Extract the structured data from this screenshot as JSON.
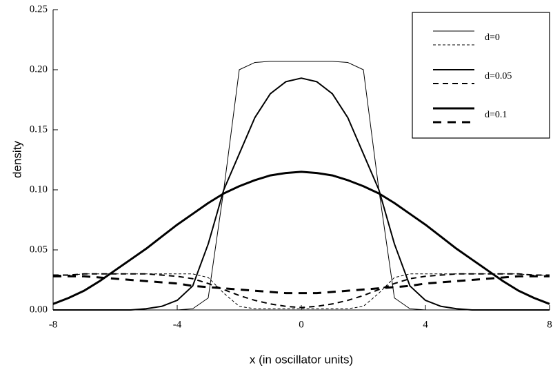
{
  "chart_data": {
    "type": "line",
    "xlabel": "x (in oscillator units)",
    "ylabel": "density",
    "xlim": [
      -8,
      8
    ],
    "xticks": [
      -8,
      -4,
      0,
      4,
      8
    ],
    "ylim": [
      0,
      0.25
    ],
    "yticks": [
      {
        "value": 0,
        "label": "0.00"
      },
      0.05,
      {
        "value": 0.1,
        "label": "0.10"
      },
      0.15,
      {
        "value": 0.2,
        "label": "0.20"
      },
      0.25
    ],
    "legend": "upper right",
    "x": [
      -8,
      -7.5,
      -7,
      -6.5,
      -6,
      -5.5,
      -5,
      -4.5,
      -4,
      -3.5,
      -3,
      -2.5,
      -2,
      -1.5,
      -1,
      -0.5,
      0,
      0.5,
      1,
      1.5,
      2,
      2.5,
      3,
      3.5,
      4,
      4.5,
      5,
      5.5,
      6,
      6.5,
      7,
      7.5,
      8
    ],
    "series": [
      {
        "name": "d=0",
        "color": "#000000",
        "line_width": 1,
        "lines": [
          {
            "dashed": false,
            "values": [
              0,
              0,
              0,
              0,
              0,
              0,
              0,
              0,
              0,
              0.001,
              0.01,
              0.1,
              0.2,
              0.206,
              0.207,
              0.207,
              0.207,
              0.207,
              0.207,
              0.206,
              0.2,
              0.1,
              0.01,
              0.001,
              0,
              0,
              0,
              0,
              0,
              0,
              0,
              0,
              0
            ]
          },
          {
            "dashed": true,
            "values": [
              0.029,
              0.029,
              0.03,
              0.03,
              0.03,
              0.03,
              0.03,
              0.03,
              0.03,
              0.03,
              0.027,
              0.014,
              0.003,
              0.001,
              0.001,
              0.001,
              0.001,
              0.001,
              0.001,
              0.001,
              0.003,
              0.014,
              0.027,
              0.03,
              0.03,
              0.03,
              0.03,
              0.03,
              0.03,
              0.03,
              0.03,
              0.029,
              0.029
            ]
          }
        ]
      },
      {
        "name": "d=0.05",
        "color": "#000000",
        "line_width": 2,
        "lines": [
          {
            "dashed": false,
            "values": [
              0,
              0,
              0,
              0,
              0,
              0,
              0.001,
              0.003,
              0.008,
              0.02,
              0.055,
              0.1,
              0.13,
              0.16,
              0.18,
              0.19,
              0.193,
              0.19,
              0.18,
              0.16,
              0.13,
              0.1,
              0.055,
              0.02,
              0.008,
              0.003,
              0.001,
              0,
              0,
              0,
              0,
              0,
              0
            ]
          },
          {
            "dashed": true,
            "values": [
              0.029,
              0.029,
              0.03,
              0.03,
              0.03,
              0.03,
              0.03,
              0.029,
              0.028,
              0.026,
              0.022,
              0.017,
              0.012,
              0.008,
              0.005,
              0.003,
              0.002,
              0.003,
              0.005,
              0.008,
              0.012,
              0.017,
              0.022,
              0.026,
              0.028,
              0.029,
              0.03,
              0.03,
              0.03,
              0.03,
              0.03,
              0.029,
              0.029
            ]
          }
        ]
      },
      {
        "name": "d=0.1",
        "color": "#000000",
        "line_width": 3,
        "lines": [
          {
            "dashed": false,
            "values": [
              0.005,
              0.01,
              0.016,
              0.024,
              0.033,
              0.042,
              0.051,
              0.061,
              0.071,
              0.08,
              0.089,
              0.097,
              0.103,
              0.108,
              0.112,
              0.114,
              0.115,
              0.114,
              0.112,
              0.108,
              0.103,
              0.097,
              0.089,
              0.08,
              0.071,
              0.061,
              0.051,
              0.042,
              0.033,
              0.024,
              0.016,
              0.01,
              0.005
            ]
          },
          {
            "dashed": true,
            "values": [
              0.028,
              0.028,
              0.028,
              0.027,
              0.026,
              0.025,
              0.024,
              0.023,
              0.022,
              0.02,
              0.019,
              0.018,
              0.017,
              0.016,
              0.015,
              0.014,
              0.014,
              0.014,
              0.015,
              0.016,
              0.017,
              0.018,
              0.019,
              0.02,
              0.022,
              0.023,
              0.024,
              0.025,
              0.026,
              0.027,
              0.028,
              0.028,
              0.028
            ]
          }
        ]
      }
    ]
  }
}
